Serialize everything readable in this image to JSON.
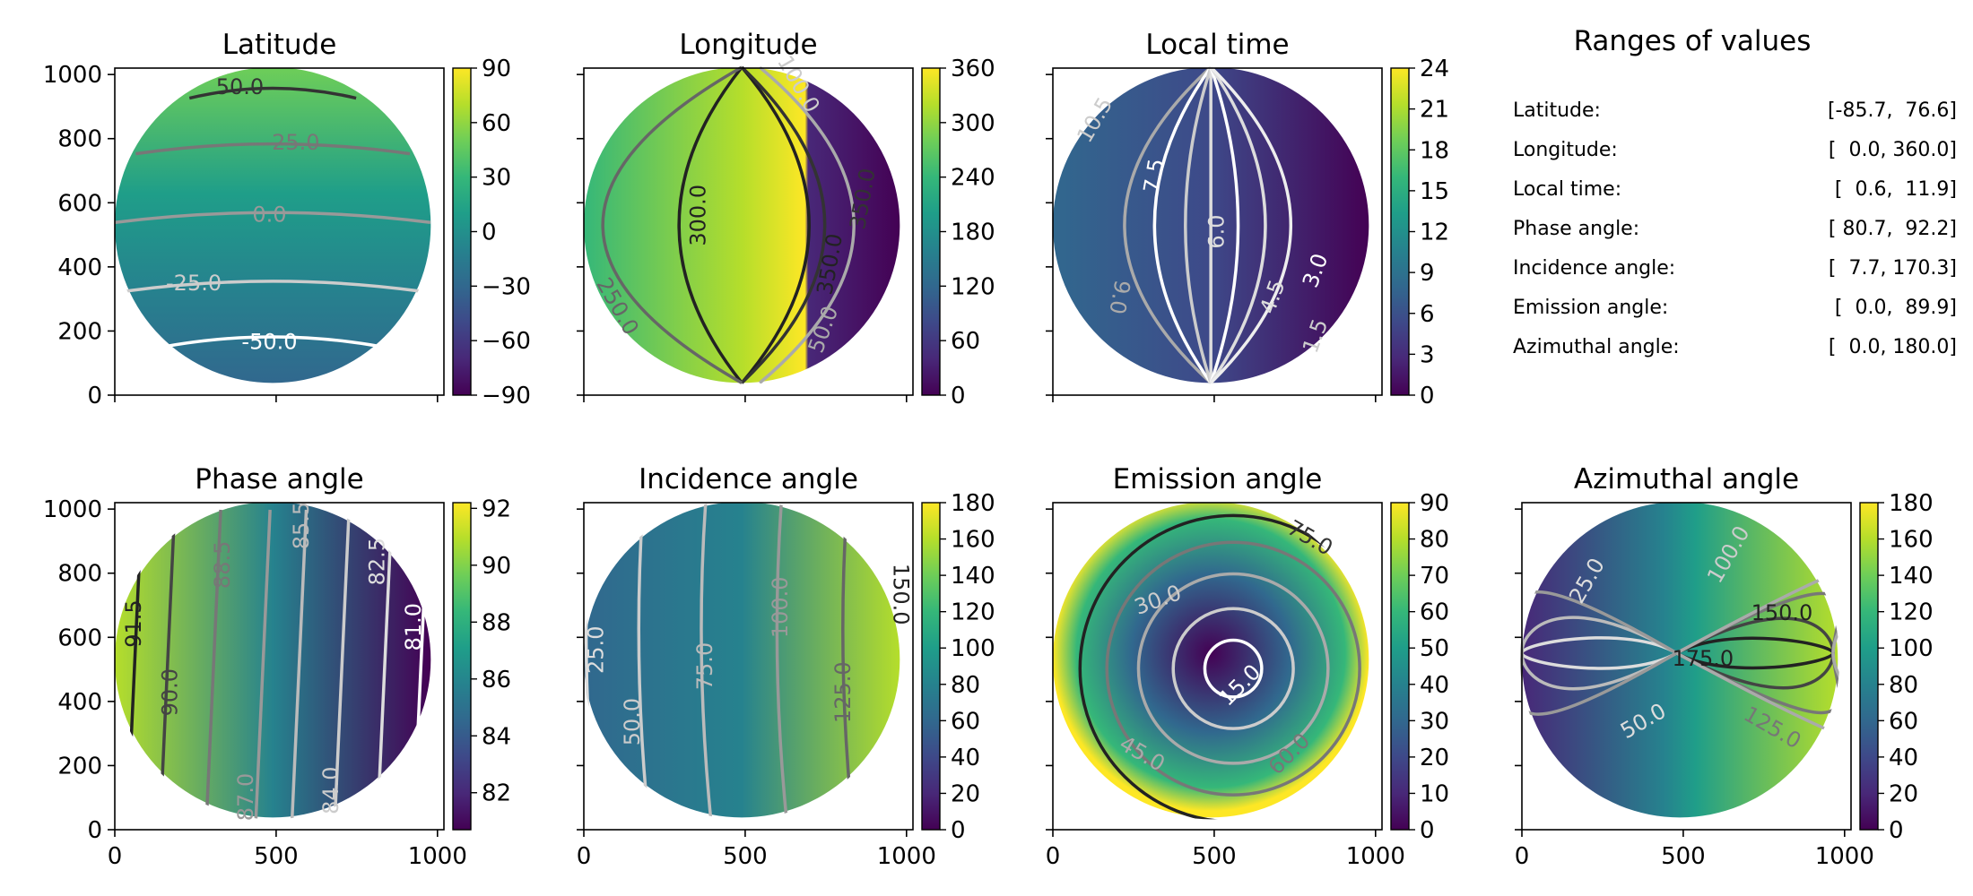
{
  "colormap": "viridis",
  "viridis_stops": [
    "#440154",
    "#482878",
    "#3e4989",
    "#31688e",
    "#26828e",
    "#1f9e89",
    "#35b779",
    "#6ece58",
    "#b5de2b",
    "#fde725"
  ],
  "chart_data": [
    {
      "type": "heatmap",
      "title": "Latitude",
      "disk": true,
      "xlim": [
        0,
        1020
      ],
      "ylim": [
        0,
        1020
      ],
      "x_ticks": [],
      "y_ticks": [
        0,
        200,
        400,
        600,
        800,
        1000
      ],
      "colorbar": {
        "min": -90,
        "max": 90,
        "ticks": [
          90,
          60,
          30,
          0,
          -30,
          -60,
          -90
        ],
        "tick_labels": [
          "90",
          "60",
          "30",
          "0",
          "−30",
          "−60",
          "−90"
        ]
      },
      "contour_labels": [
        "50.0",
        "25.0",
        "0.0",
        "-25.0",
        "-50.0"
      ]
    },
    {
      "type": "heatmap",
      "title": "Longitude",
      "disk": true,
      "xlim": [
        0,
        1020
      ],
      "ylim": [
        0,
        1020
      ],
      "x_ticks": [],
      "y_ticks": [],
      "colorbar": {
        "min": 0,
        "max": 360,
        "ticks": [
          360,
          300,
          240,
          180,
          120,
          60,
          0
        ],
        "tick_labels": [
          "360",
          "300",
          "240",
          "180",
          "120",
          "60",
          "0"
        ]
      },
      "contour_labels": [
        "300.0",
        "350.0",
        "350.0",
        "250.0",
        "50.0",
        "100.0"
      ]
    },
    {
      "type": "heatmap",
      "title": "Local time",
      "disk": true,
      "xlim": [
        0,
        1020
      ],
      "ylim": [
        0,
        1020
      ],
      "x_ticks": [],
      "y_ticks": [],
      "colorbar": {
        "min": 0,
        "max": 24,
        "ticks": [
          24,
          21,
          18,
          15,
          12,
          9,
          6,
          3,
          0
        ],
        "tick_labels": [
          "24",
          "21",
          "18",
          "15",
          "12",
          "9",
          "6",
          "3",
          "0"
        ]
      },
      "contour_labels": [
        "10.5",
        "7.5",
        "6.0",
        "4.5",
        "3.0",
        "9.0",
        "1.5"
      ]
    },
    {
      "type": "table",
      "title": "Ranges of values",
      "rows": [
        {
          "label": "Latitude:",
          "range": "[-85.7,  76.6]"
        },
        {
          "label": "Longitude:",
          "range": "[  0.0, 360.0]"
        },
        {
          "label": "Local time:",
          "range": "[  0.6,  11.9]"
        },
        {
          "label": "Phase angle:",
          "range": "[ 80.7,  92.2]"
        },
        {
          "label": "Incidence angle:",
          "range": "[  7.7, 170.3]"
        },
        {
          "label": "Emission angle:",
          "range": "[  0.0,  89.9]"
        },
        {
          "label": "Azimuthal angle:",
          "range": "[  0.0, 180.0]"
        }
      ]
    },
    {
      "type": "heatmap",
      "title": "Phase angle",
      "disk": true,
      "xlim": [
        0,
        1020
      ],
      "ylim": [
        0,
        1020
      ],
      "x_ticks": [
        0,
        500,
        1000
      ],
      "y_ticks": [
        0,
        200,
        400,
        600,
        800,
        1000
      ],
      "colorbar": {
        "min": 80.7,
        "max": 92.2,
        "ticks": [
          92,
          90,
          88,
          86,
          84,
          82
        ],
        "tick_labels": [
          "92",
          "90",
          "88",
          "86",
          "84",
          "82"
        ]
      },
      "contour_labels": [
        "91.5",
        "90.0",
        "88.5",
        "87.0",
        "85.5",
        "84.0",
        "82.5",
        "81.0"
      ]
    },
    {
      "type": "heatmap",
      "title": "Incidence angle",
      "disk": true,
      "xlim": [
        0,
        1020
      ],
      "ylim": [
        0,
        1020
      ],
      "x_ticks": [
        0,
        500,
        1000
      ],
      "y_ticks": [],
      "colorbar": {
        "min": 0,
        "max": 180,
        "ticks": [
          180,
          160,
          140,
          120,
          100,
          80,
          60,
          40,
          20,
          0
        ],
        "tick_labels": [
          "180",
          "160",
          "140",
          "120",
          "100",
          "80",
          "60",
          "40",
          "20",
          "0"
        ]
      },
      "contour_labels": [
        "25.0",
        "50.0",
        "75.0",
        "100.0",
        "125.0",
        "150.0"
      ]
    },
    {
      "type": "heatmap",
      "title": "Emission angle",
      "disk": true,
      "xlim": [
        0,
        1020
      ],
      "ylim": [
        0,
        1020
      ],
      "x_ticks": [
        0,
        500,
        1000
      ],
      "y_ticks": [],
      "colorbar": {
        "min": 0,
        "max": 90,
        "ticks": [
          90,
          80,
          70,
          60,
          50,
          40,
          30,
          20,
          10,
          0
        ],
        "tick_labels": [
          "90",
          "80",
          "70",
          "60",
          "50",
          "40",
          "30",
          "20",
          "10",
          "0"
        ]
      },
      "contour_labels": [
        "75.0",
        "30.0",
        "15.0",
        "45.0",
        "60.0"
      ]
    },
    {
      "type": "heatmap",
      "title": "Azimuthal angle",
      "disk": true,
      "xlim": [
        0,
        1020
      ],
      "ylim": [
        0,
        1020
      ],
      "x_ticks": [
        0,
        500,
        1000
      ],
      "y_ticks": [],
      "colorbar": {
        "min": 0,
        "max": 180,
        "ticks": [
          180,
          160,
          140,
          120,
          100,
          80,
          60,
          40,
          20,
          0
        ],
        "tick_labels": [
          "180",
          "160",
          "140",
          "120",
          "100",
          "80",
          "60",
          "40",
          "20",
          "0"
        ]
      },
      "contour_labels": [
        "100.0",
        "150.0",
        "175.0",
        "125.0",
        "50.0",
        "25.0"
      ]
    }
  ]
}
